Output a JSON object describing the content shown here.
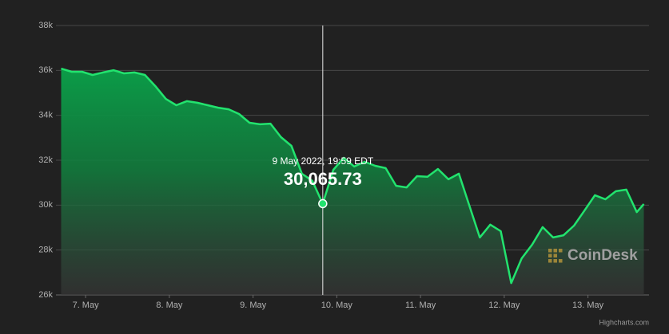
{
  "chart_data": {
    "type": "area",
    "x": [
      "2022-05-06T17:00",
      "2022-05-06T20:00",
      "2022-05-06T23:00",
      "2022-05-07T02:00",
      "2022-05-07T05:00",
      "2022-05-07T08:00",
      "2022-05-07T11:00",
      "2022-05-07T14:00",
      "2022-05-07T17:00",
      "2022-05-07T20:00",
      "2022-05-07T23:00",
      "2022-05-08T02:00",
      "2022-05-08T05:00",
      "2022-05-08T08:00",
      "2022-05-08T11:00",
      "2022-05-08T14:00",
      "2022-05-08T17:00",
      "2022-05-08T20:00",
      "2022-05-08T23:00",
      "2022-05-09T02:00",
      "2022-05-09T05:00",
      "2022-05-09T08:00",
      "2022-05-09T11:00",
      "2022-05-09T14:00",
      "2022-05-09T17:00",
      "2022-05-09T19:59",
      "2022-05-09T23:00",
      "2022-05-10T02:00",
      "2022-05-10T05:00",
      "2022-05-10T08:00",
      "2022-05-10T11:00",
      "2022-05-10T14:00",
      "2022-05-10T17:00",
      "2022-05-10T20:00",
      "2022-05-10T23:00",
      "2022-05-11T02:00",
      "2022-05-11T05:00",
      "2022-05-11T08:00",
      "2022-05-11T11:00",
      "2022-05-11T14:00",
      "2022-05-11T17:00",
      "2022-05-11T20:00",
      "2022-05-11T23:00",
      "2022-05-12T02:00",
      "2022-05-12T05:00",
      "2022-05-12T08:00",
      "2022-05-12T11:00",
      "2022-05-12T14:00",
      "2022-05-12T17:00",
      "2022-05-12T20:00",
      "2022-05-12T23:00",
      "2022-05-13T02:00",
      "2022-05-13T05:00",
      "2022-05-13T08:00",
      "2022-05-13T11:00",
      "2022-05-13T14:00",
      "2022-05-13T16:00"
    ],
    "values": [
      36080,
      35940,
      35940,
      35800,
      35910,
      36010,
      35870,
      35910,
      35800,
      35300,
      34730,
      34450,
      34630,
      34560,
      34450,
      34340,
      34270,
      34060,
      33670,
      33600,
      33630,
      33030,
      32640,
      31400,
      31080,
      30065.73,
      31570,
      32110,
      31720,
      31930,
      31750,
      31650,
      30860,
      30790,
      31290,
      31260,
      31610,
      31150,
      31400,
      29980,
      28560,
      29130,
      28840,
      26530,
      27630,
      28240,
      29020,
      28560,
      28660,
      29090,
      29760,
      30440,
      30260,
      30620,
      30690,
      29690,
      30050
    ],
    "color": "#22e36e",
    "xlim": [
      "2022-05-06T15:30",
      "2022-05-13T17:30"
    ],
    "xticks": [
      {
        "value": "2022-05-07T00:00",
        "label": "7. May"
      },
      {
        "value": "2022-05-08T00:00",
        "label": "8. May"
      },
      {
        "value": "2022-05-09T00:00",
        "label": "9. May"
      },
      {
        "value": "2022-05-10T00:00",
        "label": "10. May"
      },
      {
        "value": "2022-05-11T00:00",
        "label": "11. May"
      },
      {
        "value": "2022-05-12T00:00",
        "label": "12. May"
      },
      {
        "value": "2022-05-13T00:00",
        "label": "13. May"
      }
    ],
    "ylim": [
      26000,
      38000
    ],
    "yticks": [
      {
        "value": 26000,
        "label": "26k"
      },
      {
        "value": 28000,
        "label": "28k"
      },
      {
        "value": 30000,
        "label": "30k"
      },
      {
        "value": 32000,
        "label": "32k"
      },
      {
        "value": 34000,
        "label": "34k"
      },
      {
        "value": 36000,
        "label": "36k"
      },
      {
        "value": 38000,
        "label": "38k"
      }
    ],
    "grid": true,
    "tooltip": {
      "date": "9 May 2022, 19:59 EDT",
      "value": 30065.73,
      "value_label": "30,065.73"
    },
    "watermark": "CoinDesk",
    "credits": "Highcharts.com"
  }
}
